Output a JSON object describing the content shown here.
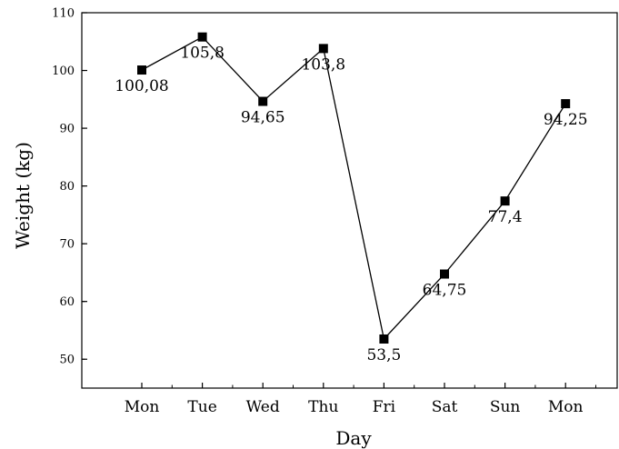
{
  "chart_data": {
    "type": "line",
    "categories": [
      "Mon",
      "Tue",
      "Wed",
      "Thu",
      "Fri",
      "Sat",
      "Sun",
      "Mon"
    ],
    "series": [
      {
        "values": [
          100.08,
          105.8,
          94.65,
          103.8,
          53.5,
          64.75,
          77.4,
          94.25
        ],
        "labels": [
          "100,08",
          "105,8",
          "94,65",
          "103,8",
          "53,5",
          "64,75",
          "77,4",
          "94,25"
        ],
        "marker": "square",
        "color": "#000000"
      }
    ],
    "title": "",
    "xlabel": "Day",
    "ylabel": "Weight (kg)",
    "ylim": [
      45,
      110
    ],
    "yticks": [
      50,
      60,
      70,
      80,
      90,
      100,
      110
    ],
    "grid": false,
    "legend": "none"
  }
}
